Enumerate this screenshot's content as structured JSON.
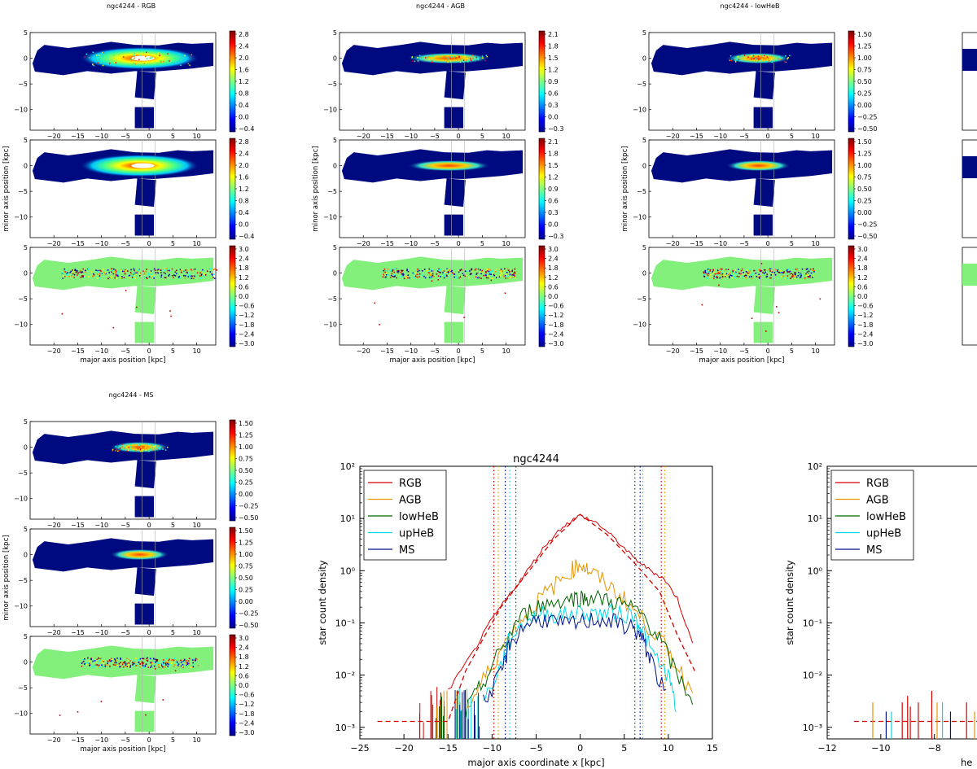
{
  "colors": {
    "RGB": "#d40000",
    "AGB": "#e69500",
    "lowHeB": "#006400",
    "upHeB": "#00d8e8",
    "MS": "#00138c",
    "map_bg": "#000a80",
    "resid_bg": "#84f07c"
  },
  "map_groups": [
    {
      "title": "ngc4244 - RGB",
      "colorbars": [
        [
          "2.8",
          "2.4",
          "2.0",
          "1.6",
          "1.2",
          "0.8",
          "0.4",
          "0.0",
          "−0.4"
        ],
        [
          "2.8",
          "2.4",
          "2.0",
          "1.6",
          "1.2",
          "0.8",
          "0.4",
          "0.0",
          "−0.4"
        ],
        [
          "3.0",
          "2.4",
          "1.8",
          "1.2",
          "0.6",
          "0.0",
          "−0.6",
          "−1.2",
          "−1.8",
          "−2.4",
          "−3.0"
        ]
      ]
    },
    {
      "title": "ngc4244 - AGB",
      "colorbars": [
        [
          "2.1",
          "1.8",
          "1.5",
          "1.2",
          "0.9",
          "0.6",
          "0.3",
          "0.0",
          "−0.3"
        ],
        [
          "2.1",
          "1.8",
          "1.5",
          "1.2",
          "0.9",
          "0.6",
          "0.3",
          "0.0",
          "−0.3"
        ],
        [
          "3.0",
          "2.4",
          "1.8",
          "1.2",
          "0.6",
          "0.0",
          "−0.6",
          "−1.2",
          "−1.8",
          "−2.4",
          "−3.0"
        ]
      ]
    },
    {
      "title": "ngc4244 - lowHeB",
      "colorbars": [
        [
          "1.50",
          "1.25",
          "1.00",
          "0.75",
          "0.50",
          "0.25",
          "0.00",
          "−0.25",
          "−0.50"
        ],
        [
          "1.50",
          "1.25",
          "1.00",
          "0.75",
          "0.50",
          "0.25",
          "0.00",
          "−0.25",
          "−0.50"
        ],
        [
          "3.0",
          "2.4",
          "1.8",
          "1.2",
          "0.6",
          "0.0",
          "−0.6",
          "−1.2",
          "−1.8",
          "−2.4",
          "−3.0"
        ]
      ]
    },
    {
      "title": "ngc4244 - MS",
      "colorbars": [
        [
          "1.50",
          "1.25",
          "1.00",
          "0.75",
          "0.50",
          "0.25",
          "0.00",
          "−0.25",
          "−0.50"
        ],
        [
          "1.50",
          "1.25",
          "1.00",
          "0.75",
          "0.50",
          "0.25",
          "0.00",
          "−0.25",
          "−0.50"
        ],
        [
          "3.0",
          "2.4",
          "1.8",
          "1.2",
          "0.6",
          "0.0",
          "−0.6",
          "−1.2",
          "−1.8",
          "−2.4",
          "−3.0"
        ]
      ]
    }
  ],
  "map_axes": {
    "x_ticks": [
      "−20",
      "−15",
      "−10",
      "−5",
      "0",
      "5",
      "10"
    ],
    "y_ticks": [
      "5",
      "0",
      "−5",
      "−10"
    ],
    "xlabel": "major axis position [kpc]",
    "ylabel": "minor axis position [kpc]"
  },
  "chart_data": [
    {
      "type": "line",
      "title": "ngc4244",
      "xlabel": "major axis coordinate x [kpc]",
      "ylabel": "star count density",
      "xlim": [
        -25,
        15
      ],
      "ylim": [
        0.0006,
        100
      ],
      "yscale": "log",
      "x_ticks": [
        "−25",
        "−20",
        "−15",
        "−10",
        "−5",
        "0",
        "5",
        "10",
        "15"
      ],
      "y_ticks": [
        "10²",
        "10¹",
        "10⁰",
        "10⁻¹",
        "10⁻²",
        "10⁻³"
      ],
      "legend": [
        "RGB",
        "AGB",
        "lowHeB",
        "upHeB",
        "MS"
      ],
      "legend_position": "top-left",
      "series": [
        {
          "name": "RGB",
          "x": [
            -15,
            -12,
            -10,
            -8,
            -6,
            -4,
            -2,
            0,
            2,
            4,
            6,
            8,
            9.5,
            11,
            13
          ],
          "y": [
            0.005,
            0.03,
            0.12,
            0.35,
            1.0,
            3.0,
            7.0,
            11.5,
            8.0,
            4.0,
            1.8,
            1.0,
            0.7,
            0.3,
            0.03
          ]
        },
        {
          "name": "AGB",
          "x": [
            -13,
            -11,
            -9,
            -7,
            -5,
            -3,
            -1,
            0,
            1,
            3,
            5,
            7,
            9,
            11,
            13
          ],
          "y": [
            0.002,
            0.008,
            0.03,
            0.1,
            0.25,
            0.5,
            1.0,
            1.4,
            1.0,
            0.55,
            0.28,
            0.12,
            0.05,
            0.015,
            0.004
          ]
        },
        {
          "name": "lowHeB",
          "x": [
            -13,
            -11,
            -9,
            -7,
            -5,
            -3,
            -1,
            0,
            1,
            3,
            5,
            7,
            9,
            11,
            13
          ],
          "y": [
            0.002,
            0.007,
            0.03,
            0.12,
            0.2,
            0.25,
            0.3,
            0.3,
            0.3,
            0.28,
            0.22,
            0.15,
            0.05,
            0.01,
            0.003
          ]
        },
        {
          "name": "upHeB",
          "x": [
            -11,
            -9,
            -8,
            -6,
            -4,
            -2,
            0,
            2,
            4,
            6,
            7,
            8,
            10,
            11
          ],
          "y": [
            0.003,
            0.015,
            0.05,
            0.12,
            0.15,
            0.14,
            0.16,
            0.15,
            0.15,
            0.14,
            0.08,
            0.03,
            0.01,
            0.002
          ]
        },
        {
          "name": "MS",
          "x": [
            -11,
            -9,
            -8,
            -6,
            -4,
            -2,
            0,
            2,
            4,
            6,
            7,
            8,
            10
          ],
          "y": [
            0.003,
            0.01,
            0.04,
            0.1,
            0.12,
            0.09,
            0.1,
            0.12,
            0.1,
            0.08,
            0.05,
            0.02,
            0.003
          ]
        }
      ],
      "fit_RGB": {
        "x": [
          -23,
          -15,
          -13,
          -11,
          -9,
          -6,
          -3,
          0,
          3,
          6,
          9,
          11,
          13
        ],
        "y": [
          0.0013,
          0.0013,
          0.012,
          0.05,
          0.2,
          0.9,
          4.0,
          12.0,
          5.0,
          1.5,
          0.4,
          0.06,
          0.012
        ]
      },
      "vlines": [
        {
          "series": "RGB",
          "x": [
            -9.8,
            9.2
          ]
        },
        {
          "series": "AGB",
          "x": [
            -9.3,
            9.6
          ]
        },
        {
          "series": "lowHeB",
          "x": [
            -7.3,
            6.2
          ]
        },
        {
          "series": "upHeB",
          "x": [
            -8.0,
            7.1
          ]
        },
        {
          "series": "MS",
          "x": [
            -8.5,
            6.8
          ]
        }
      ]
    },
    {
      "type": "line",
      "xlabel": "he",
      "ylabel": "star count density",
      "xlim": [
        -12,
        -5.5
      ],
      "ylim": [
        0.0006,
        100
      ],
      "yscale": "log",
      "x_ticks": [
        "−12",
        "−10",
        "−8",
        "−"
      ],
      "y_ticks": [
        "10²",
        "10¹",
        "10⁰",
        "10⁻¹",
        "10⁻²",
        "10⁻³"
      ],
      "legend": [
        "RGB",
        "AGB",
        "lowHeB",
        "upHeB",
        "MS"
      ],
      "legend_position": "top-left",
      "fit_RGB": {
        "x": [
          -11,
          -6
        ],
        "y": [
          0.0013,
          0.0013
        ]
      },
      "spikes": [
        {
          "series": "RGB",
          "x": [
            -9.2,
            -9.0,
            -8.9,
            -8.6,
            -8.1,
            -6.8,
            -6.2
          ],
          "y": [
            0.003,
            0.004,
            0.0025,
            0.003,
            0.005,
            0.003,
            0.002
          ]
        },
        {
          "series": "AGB",
          "x": [
            -10.3,
            -7.9,
            -6.5
          ],
          "y": [
            0.003,
            0.003,
            0.002
          ]
        },
        {
          "series": "upHeB",
          "x": [
            -9.6,
            -7.7
          ],
          "y": [
            0.002,
            0.003
          ]
        },
        {
          "series": "MS",
          "x": [
            -9.8,
            -7.4
          ],
          "y": [
            0.002,
            0.002
          ]
        }
      ]
    }
  ]
}
